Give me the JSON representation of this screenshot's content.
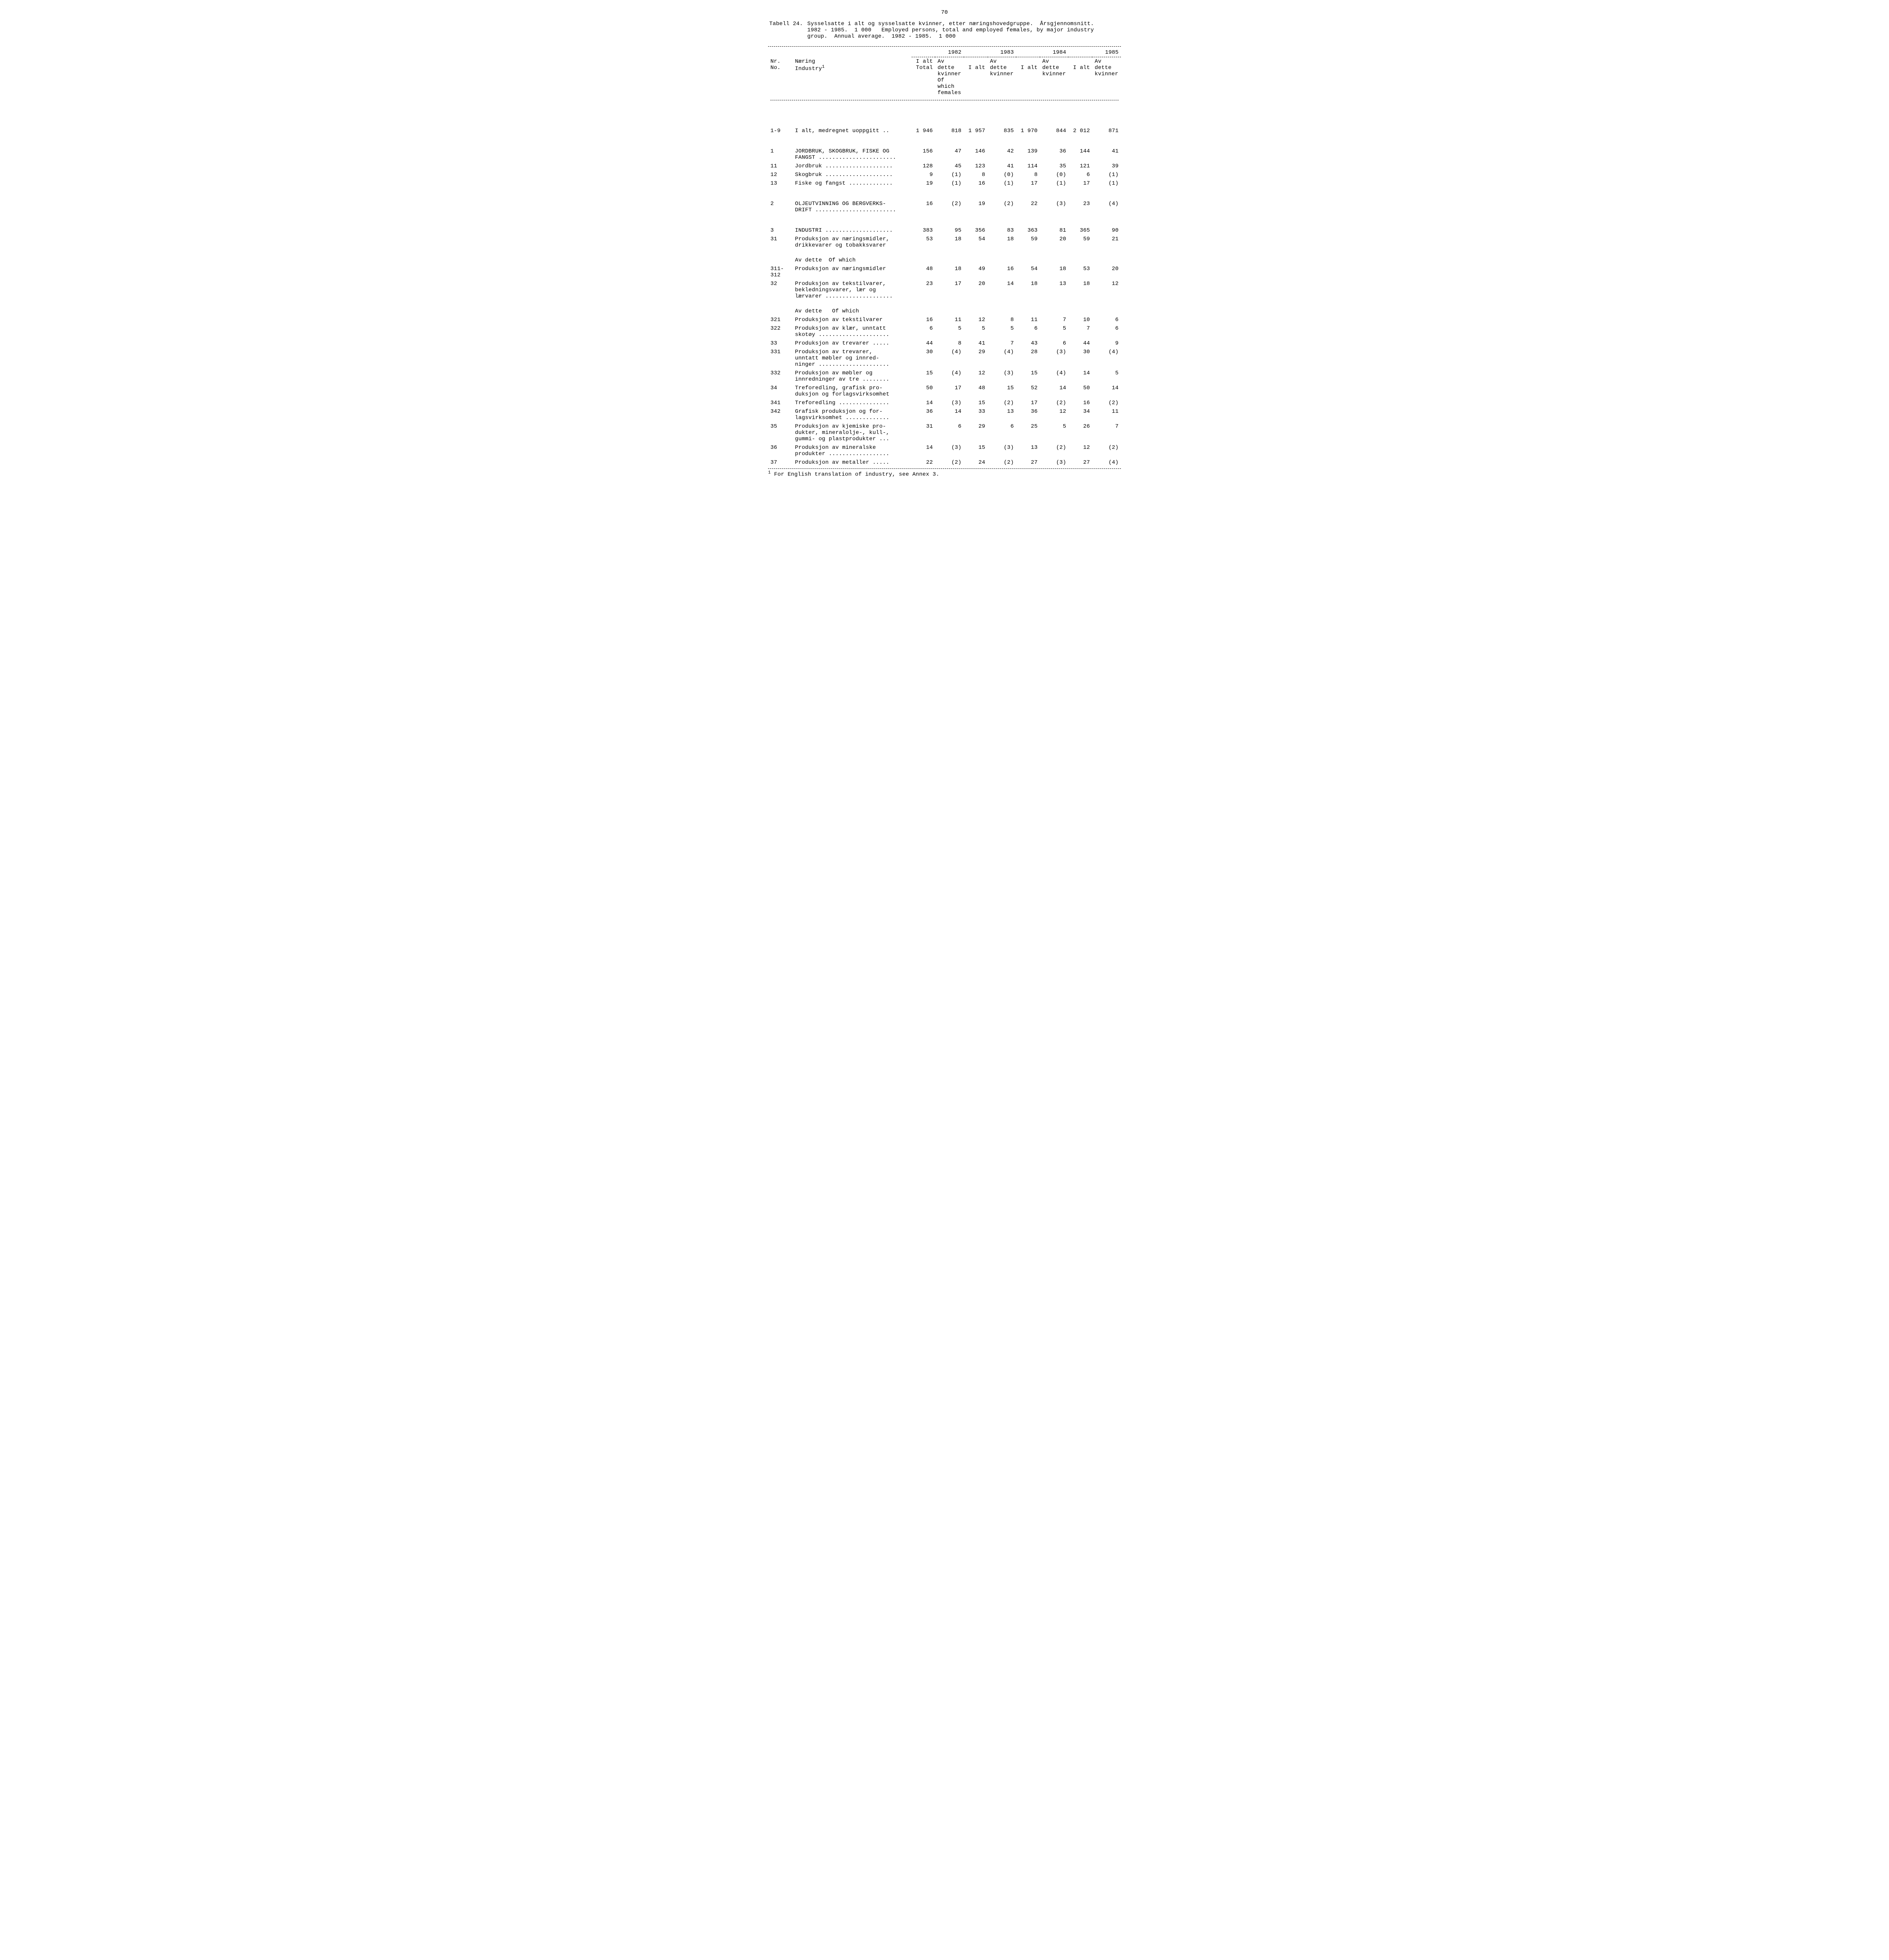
{
  "page_number": "70",
  "caption": {
    "label": "Tabell 24.",
    "text": "Sysselsatte i alt og sysselsatte kvinner, etter næringshovedgruppe.  Årsgjennomsnitt.\n1982 - 1985.  1 000   Employed persons, total and employed females, by major industry\ngroup.  Annual average.  1982 - 1985.  1 000"
  },
  "header": {
    "nr": "Nr.\nNo.",
    "industry": "Næring\nIndustry",
    "industry_sup": "1",
    "years": [
      "1982",
      "1983",
      "1984",
      "1985"
    ],
    "i_alt": "I alt",
    "total": "Total",
    "av_dette": "Av dette",
    "kvinner": "kvinner",
    "of_which": "Of which",
    "females": "females"
  },
  "rows": [
    {
      "nr": "1-9",
      "name": "I alt, medregnet uoppgitt ..",
      "v": [
        "1 946",
        "818",
        "1 957",
        "835",
        "1 970",
        "844",
        "2 012",
        "871"
      ],
      "gap": "big"
    },
    {
      "nr": "1",
      "name": "JORDBRUK, SKOGBRUK, FISKE OG\nFANGST .......................",
      "v": [
        "156",
        "47",
        "146",
        "42",
        "139",
        "36",
        "144",
        "41"
      ],
      "gap": "big"
    },
    {
      "nr": "11",
      "name": "Jordbruk ....................",
      "v": [
        "128",
        "45",
        "123",
        "41",
        "114",
        "35",
        "121",
        "39"
      ]
    },
    {
      "nr": "12",
      "name": "Skogbruk ....................",
      "v": [
        "9",
        "(1)",
        "8",
        "(0)",
        "8",
        "(0)",
        "6",
        "(1)"
      ]
    },
    {
      "nr": "13",
      "name": "Fiske og fangst .............",
      "v": [
        "19",
        "(1)",
        "16",
        "(1)",
        "17",
        "(1)",
        "17",
        "(1)"
      ]
    },
    {
      "nr": "2",
      "name": "OLJEUTVINNING OG BERGVERKS-\nDRIFT ........................",
      "v": [
        "16",
        "(2)",
        "19",
        "(2)",
        "22",
        "(3)",
        "23",
        "(4)"
      ],
      "gap": "big"
    },
    {
      "nr": "3",
      "name": "INDUSTRI ....................",
      "v": [
        "383",
        "95",
        "356",
        "83",
        "363",
        "81",
        "365",
        "90"
      ],
      "gap": "big"
    },
    {
      "nr": "31",
      "name": "Produksjon av næringsmidler,\ndrikkevarer og tobakksvarer",
      "v": [
        "53",
        "18",
        "54",
        "18",
        "59",
        "20",
        "59",
        "21"
      ]
    },
    {
      "nr": "",
      "name": "Av dette  Of which",
      "v": [
        "",
        "",
        "",
        "",
        "",
        "",
        "",
        ""
      ],
      "gap": "small"
    },
    {
      "nr": "311-\n312",
      "name": "Produksjon av næringsmidler",
      "v": [
        "48",
        "18",
        "49",
        "16",
        "54",
        "18",
        "53",
        "20"
      ]
    },
    {
      "nr": "32",
      "name": "Produksjon av tekstilvarer,\nbekledningsvarer, lær og\nlærvarer ....................",
      "v": [
        "23",
        "17",
        "20",
        "14",
        "18",
        "13",
        "18",
        "12"
      ]
    },
    {
      "nr": "",
      "name": "Av dette   Of which",
      "v": [
        "",
        "",
        "",
        "",
        "",
        "",
        "",
        ""
      ],
      "gap": "small"
    },
    {
      "nr": "321",
      "name": "Produksjon av tekstilvarer",
      "v": [
        "16",
        "11",
        "12",
        "8",
        "11",
        "7",
        "10",
        "6"
      ]
    },
    {
      "nr": "322",
      "name": "Produksjon av klær, unntatt\nskotøy .....................",
      "v": [
        "6",
        "5",
        "5",
        "5",
        "6",
        "5",
        "7",
        "6"
      ]
    },
    {
      "nr": "33",
      "name": "Produksjon av trevarer .....",
      "v": [
        "44",
        "8",
        "41",
        "7",
        "43",
        "6",
        "44",
        "9"
      ]
    },
    {
      "nr": "331",
      "name": "Produksjon av trevarer,\nunntatt møbler og innred-\nninger .....................",
      "v": [
        "30",
        "(4)",
        "29",
        "(4)",
        "28",
        "(3)",
        "30",
        "(4)"
      ]
    },
    {
      "nr": "332",
      "name": "Produksjon av møbler og\ninnredninger av tre ........",
      "v": [
        "15",
        "(4)",
        "12",
        "(3)",
        "15",
        "(4)",
        "14",
        "5"
      ]
    },
    {
      "nr": "34",
      "name": "Treforedling, grafisk pro-\nduksjon og forlagsvirksomhet",
      "v": [
        "50",
        "17",
        "48",
        "15",
        "52",
        "14",
        "50",
        "14"
      ]
    },
    {
      "nr": "341",
      "name": "Treforedling ...............",
      "v": [
        "14",
        "(3)",
        "15",
        "(2)",
        "17",
        "(2)",
        "16",
        "(2)"
      ]
    },
    {
      "nr": "342",
      "name": "Grafisk produksjon og for-\nlagsvirksomhet .............",
      "v": [
        "36",
        "14",
        "33",
        "13",
        "36",
        "12",
        "34",
        "11"
      ]
    },
    {
      "nr": "35",
      "name": "Produksjon av kjemiske pro-\ndukter, mineralolje-, kull-,\ngummi- og plastprodukter ...",
      "v": [
        "31",
        "6",
        "29",
        "6",
        "25",
        "5",
        "26",
        "7"
      ]
    },
    {
      "nr": "36",
      "name": "Produksjon av mineralske\nprodukter ..................",
      "v": [
        "14",
        "(3)",
        "15",
        "(3)",
        "13",
        "(2)",
        "12",
        "(2)"
      ]
    },
    {
      "nr": "37",
      "name": "Produksjon av metaller .....",
      "v": [
        "22",
        "(2)",
        "24",
        "(2)",
        "27",
        "(3)",
        "27",
        "(4)"
      ]
    }
  ],
  "footnote": {
    "marker": "1",
    "text": "For English translation of industry, see Annex 3."
  }
}
